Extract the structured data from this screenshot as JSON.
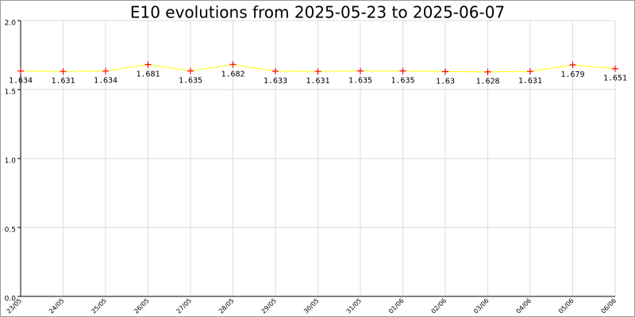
{
  "chart_data": {
    "type": "line",
    "title": "E10 evolutions from 2025-05-23 to 2025-06-07",
    "categories": [
      "23/05",
      "24/05",
      "25/05",
      "26/05",
      "27/05",
      "28/05",
      "29/05",
      "30/05",
      "31/05",
      "01/06",
      "02/06",
      "03/06",
      "04/06",
      "05/06",
      "06/06"
    ],
    "series": [
      {
        "name": "E10",
        "color": "#ffff00",
        "marker_color": "#ff0000",
        "values": [
          1.634,
          1.631,
          1.634,
          1.681,
          1.635,
          1.682,
          1.633,
          1.631,
          1.635,
          1.635,
          1.63,
          1.628,
          1.631,
          1.679,
          1.651
        ]
      }
    ],
    "ylim": [
      0,
      2
    ],
    "yticks": [
      {
        "value": 0,
        "label": "0.0"
      },
      {
        "value": 0.5,
        "label": "0.5"
      },
      {
        "value": 1,
        "label": "1.0"
      },
      {
        "value": 1.5,
        "label": "1.5"
      },
      {
        "value": 2,
        "label": "2.0"
      }
    ],
    "grid": true
  }
}
